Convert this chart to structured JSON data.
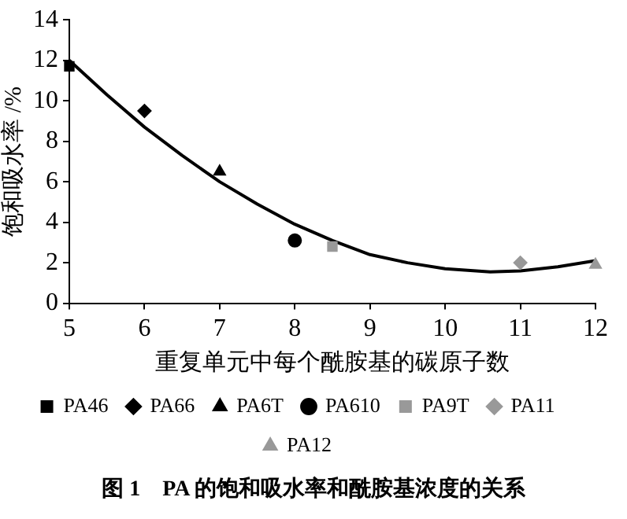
{
  "chart_data": {
    "type": "scatter",
    "title": "图 1　PA 的饱和吸水率和酰胺基浓度的关系",
    "xlabel": "重复单元中每个酰胺基的碳原子数",
    "ylabel": "饱和吸水率 /%",
    "xlim": [
      5,
      12
    ],
    "xticks": [
      5,
      6,
      7,
      8,
      9,
      10,
      11,
      12
    ],
    "ylim": [
      0,
      14
    ],
    "yticks": [
      0,
      2,
      4,
      6,
      8,
      10,
      12,
      14
    ],
    "grid": false,
    "legend": "bottom",
    "series": [
      {
        "name": "PA46",
        "color": "#000000",
        "marker": "square",
        "x": [
          5
        ],
        "values": [
          11.7
        ]
      },
      {
        "name": "PA66",
        "color": "#000000",
        "marker": "diamond",
        "x": [
          6
        ],
        "values": [
          9.5
        ]
      },
      {
        "name": "PA6T",
        "color": "#000000",
        "marker": "triangle",
        "x": [
          7
        ],
        "values": [
          6.5
        ]
      },
      {
        "name": "PA610",
        "color": "#000000",
        "marker": "circle",
        "x": [
          8
        ],
        "values": [
          3.1
        ]
      },
      {
        "name": "PA9T",
        "color": "#999999",
        "marker": "square",
        "x": [
          8.5
        ],
        "values": [
          2.8
        ]
      },
      {
        "name": "PA11",
        "color": "#999999",
        "marker": "diamond",
        "x": [
          11
        ],
        "values": [
          2.0
        ]
      },
      {
        "name": "PA12",
        "color": "#999999",
        "marker": "triangle",
        "x": [
          12
        ],
        "values": [
          1.9
        ]
      },
      {
        "type": "line",
        "color": "#000000",
        "marker": "none",
        "x": [
          5,
          5.5,
          6,
          6.5,
          7,
          7.5,
          8,
          8.5,
          9,
          9.5,
          10,
          10.6,
          11,
          11.5,
          12
        ],
        "values": [
          12.0,
          10.3,
          8.7,
          7.3,
          6.0,
          4.9,
          3.9,
          3.1,
          2.4,
          2.0,
          1.7,
          1.55,
          1.6,
          1.8,
          2.1
        ]
      }
    ]
  }
}
